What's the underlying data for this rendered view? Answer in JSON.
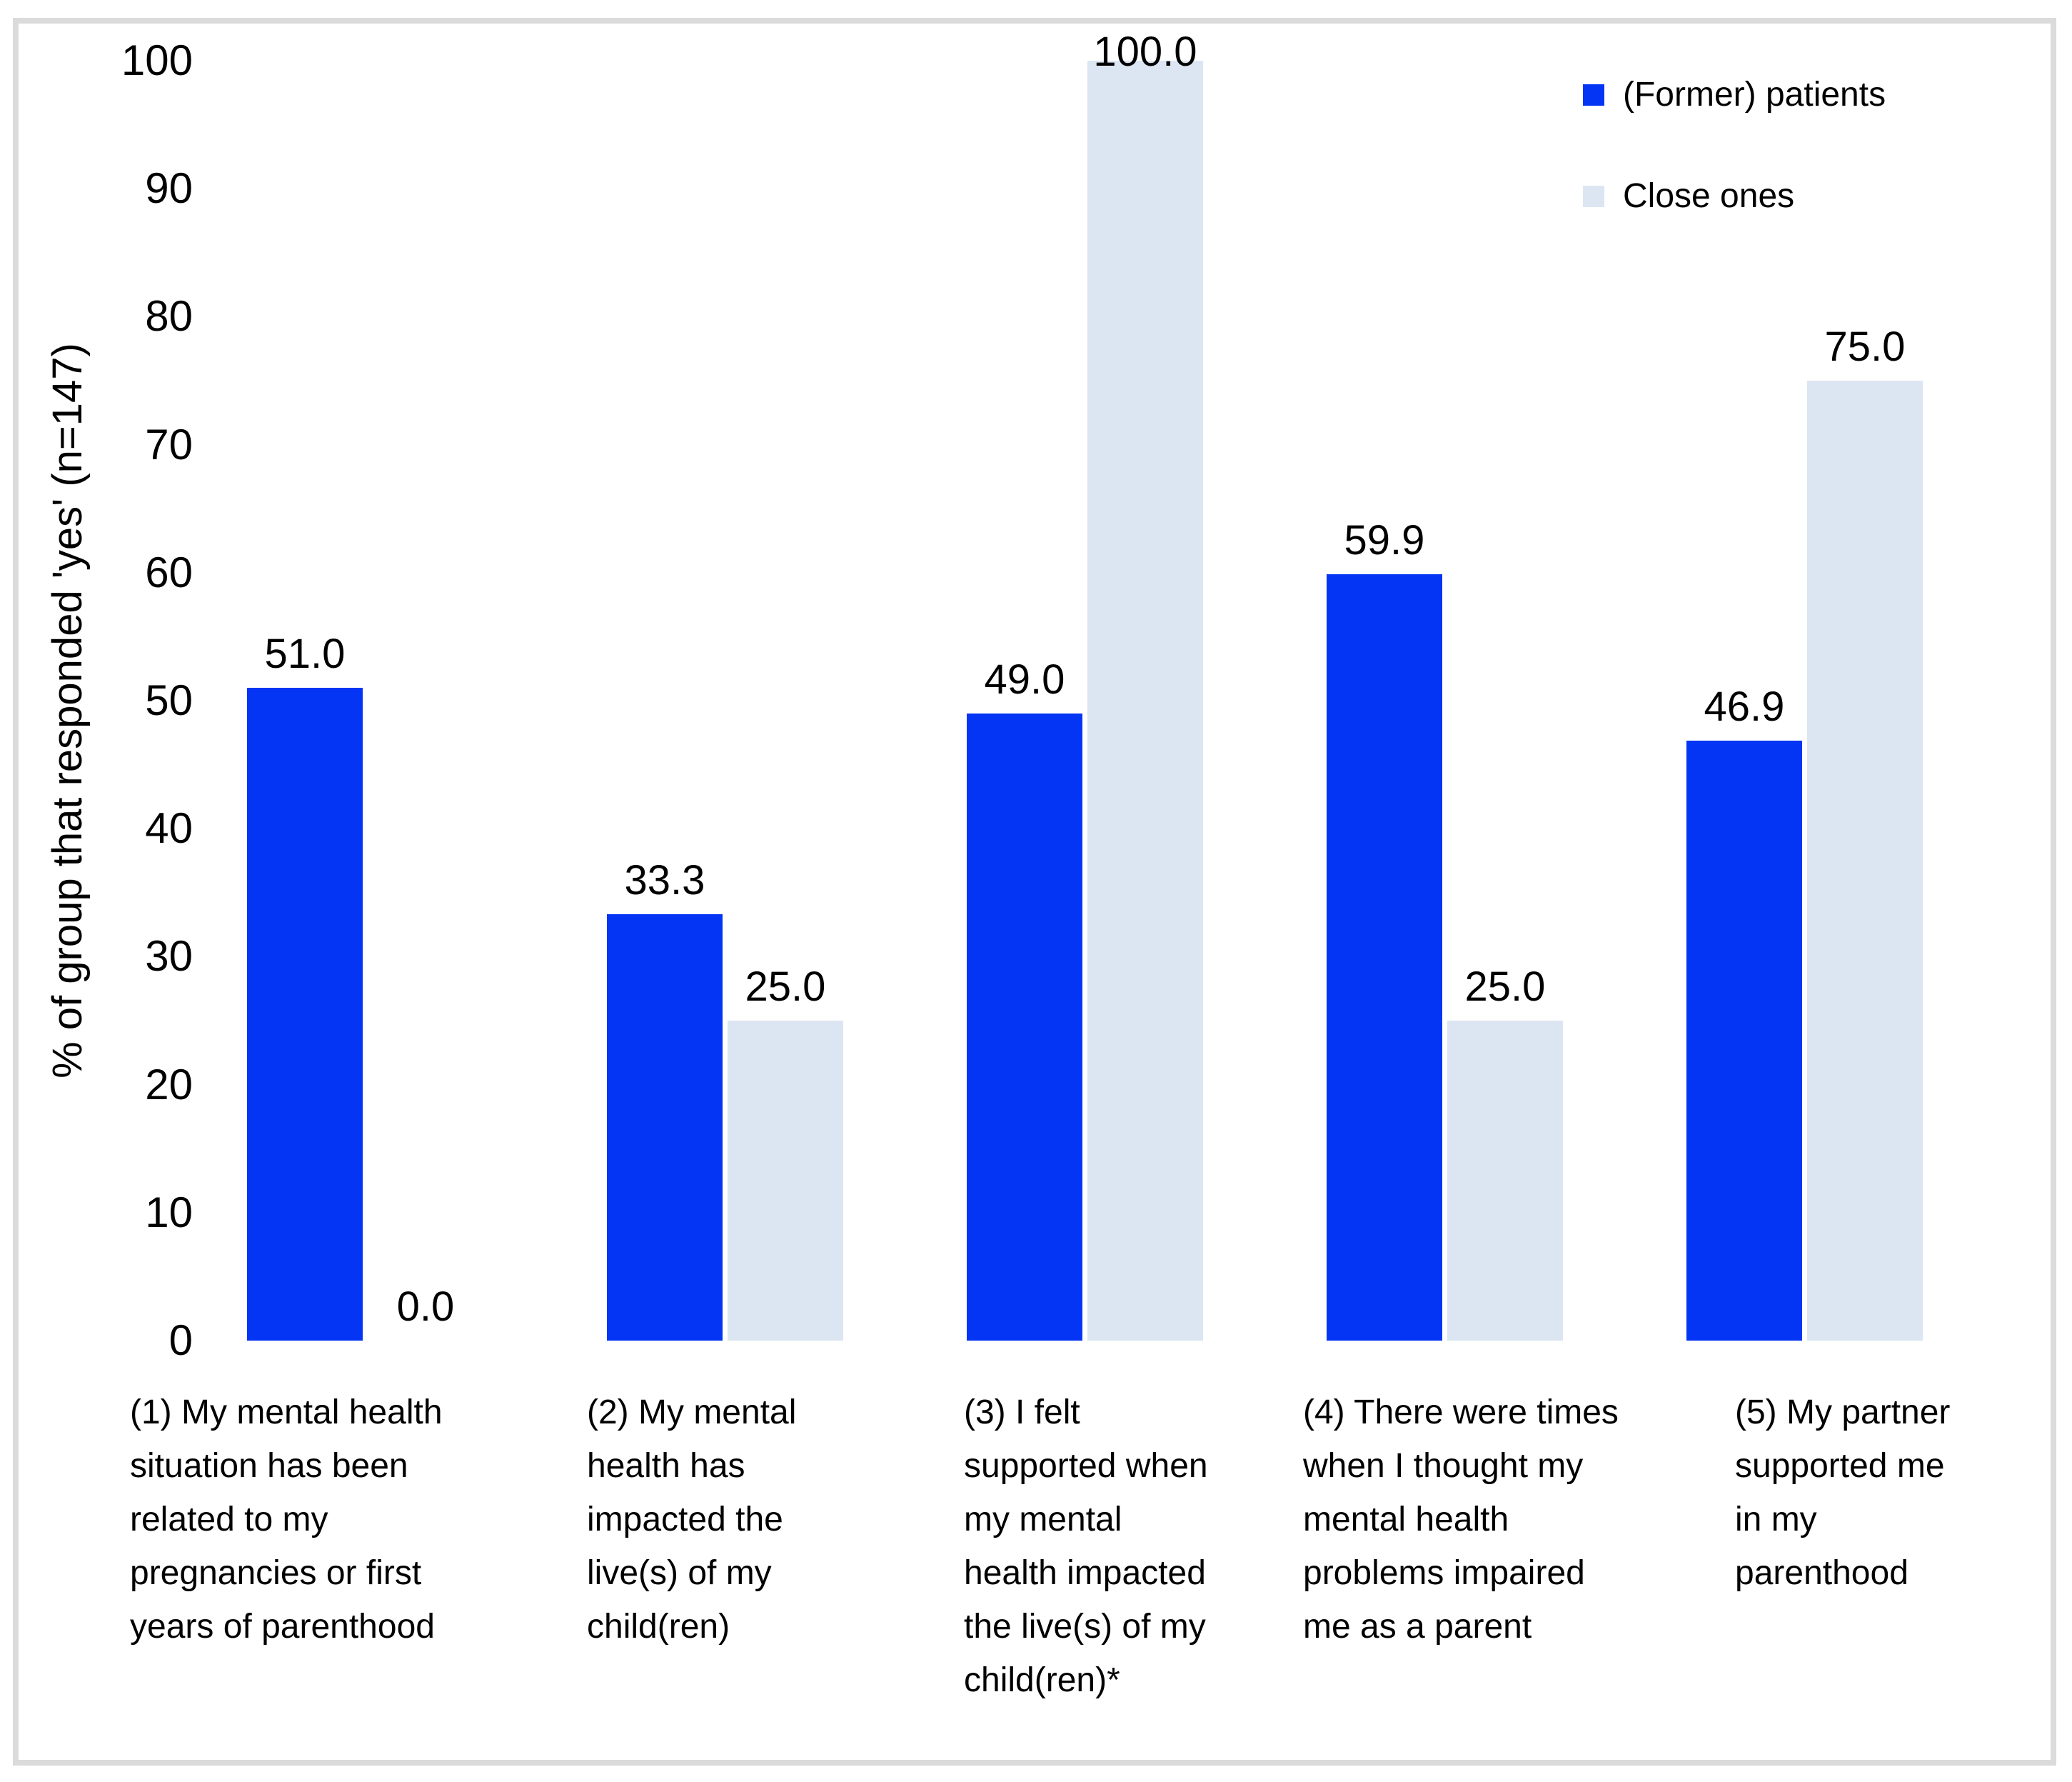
{
  "chart_data": {
    "type": "bar",
    "title": "",
    "xlabel": "",
    "ylabel": "% of group that responded 'yes' (n=147)",
    "ylim": [
      0,
      100
    ],
    "y_ticks": [
      0,
      10,
      20,
      30,
      40,
      50,
      60,
      70,
      80,
      90,
      100
    ],
    "grid": false,
    "legend_position": "top-right",
    "categories": [
      "(1) My mental health\nsituation has been\nrelated to my\npregnancies or first\nyears of parenthood",
      "(2) My mental\nhealth has\nimpacted the\nlive(s) of my\nchild(ren)",
      "(3) I felt\nsupported when\nmy mental\nhealth impacted\nthe live(s) of my\nchild(ren)*",
      "(4) There were times\nwhen I thought my\nmental health\nproblems impaired\nme as a parent",
      "(5) My partner\nsupported me\nin my\nparenthood"
    ],
    "series": [
      {
        "name": "(Former) patients",
        "color": "#0535F4",
        "values": [
          51.0,
          33.3,
          49.0,
          59.9,
          46.9
        ]
      },
      {
        "name": "Close ones",
        "color": "#DCE6F2",
        "values": [
          0.0,
          25.0,
          100.0,
          25.0,
          75.0
        ]
      }
    ],
    "data_labels": [
      [
        "51.0",
        "0.0"
      ],
      [
        "33.3",
        "25.0"
      ],
      [
        "49.0",
        "100.0"
      ],
      [
        "59.9",
        "25.0"
      ],
      [
        "46.9",
        "75.0"
      ]
    ]
  }
}
